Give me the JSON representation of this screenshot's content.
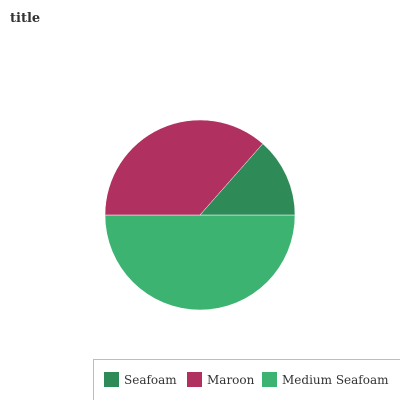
{
  "chart_data": {
    "type": "pie",
    "title": "title",
    "slices": [
      {
        "label": "Seafoam",
        "value": 13.5,
        "color": "#2e8b57"
      },
      {
        "label": "Maroon",
        "value": 36.5,
        "color": "#b03060"
      },
      {
        "label": "Medium Seafoam",
        "value": 50,
        "color": "#3cb371"
      }
    ],
    "legend_position": "bottom"
  }
}
